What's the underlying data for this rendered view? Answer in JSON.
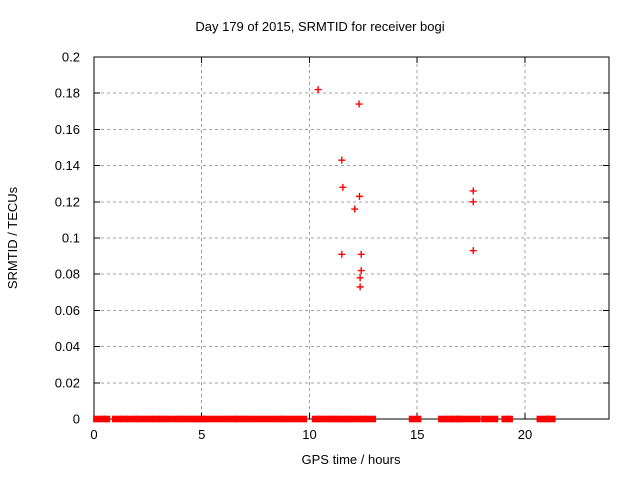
{
  "page": {
    "background": "#ffffff"
  },
  "chart_data": {
    "type": "scatter",
    "title": "Day 179 of 2015, SRMTID for receiver bogi",
    "xlabel": "GPS time / hours",
    "ylabel": "SRMTID / TECUs",
    "xlim": [
      0,
      23.9
    ],
    "ylim": [
      0,
      0.2
    ],
    "grid": true,
    "legend_position": "none",
    "marker": "plus",
    "marker_color": "#ff0000",
    "grid_color": "#a0a0a0",
    "axis_color": "#000000",
    "x_ticks": [
      {
        "v": 0,
        "label": "0"
      },
      {
        "v": 5,
        "label": "5"
      },
      {
        "v": 10,
        "label": "10"
      },
      {
        "v": 15,
        "label": "15"
      },
      {
        "v": 20,
        "label": "20"
      }
    ],
    "y_ticks": [
      {
        "v": 0,
        "label": "0"
      },
      {
        "v": 0.02,
        "label": "0.02"
      },
      {
        "v": 0.04,
        "label": "0.04"
      },
      {
        "v": 0.06,
        "label": "0.06"
      },
      {
        "v": 0.08,
        "label": "0.08"
      },
      {
        "v": 0.1,
        "label": "0.1"
      },
      {
        "v": 0.12,
        "label": "0.12"
      },
      {
        "v": 0.14,
        "label": "0.14"
      },
      {
        "v": 0.16,
        "label": "0.16"
      },
      {
        "v": 0.18,
        "label": "0.18"
      },
      {
        "v": 0.2,
        "label": "0.2"
      }
    ],
    "points": [
      [
        10.4,
        0.182
      ],
      [
        11.5,
        0.143
      ],
      [
        11.55,
        0.128
      ],
      [
        11.5,
        0.091
      ],
      [
        12.1,
        0.116
      ],
      [
        12.3,
        0.174
      ],
      [
        12.32,
        0.123
      ],
      [
        12.4,
        0.091
      ],
      [
        12.4,
        0.082
      ],
      [
        12.35,
        0.078
      ],
      [
        12.35,
        0.073
      ],
      [
        17.6,
        0.126
      ],
      [
        17.6,
        0.12
      ],
      [
        17.6,
        0.093
      ]
    ],
    "baseline_y": 0,
    "baseline_segments": [
      [
        0.05,
        0.45
      ],
      [
        0.52,
        0.66
      ],
      [
        0.93,
        1.2
      ],
      [
        1.3,
        1.46
      ],
      [
        1.58,
        1.95
      ],
      [
        2.0,
        2.43
      ],
      [
        2.55,
        2.7
      ],
      [
        2.8,
        2.95
      ],
      [
        3.04,
        3.13
      ],
      [
        3.24,
        3.33
      ],
      [
        3.47,
        3.56
      ],
      [
        3.74,
        3.83
      ],
      [
        3.96,
        4.04
      ],
      [
        4.16,
        4.38
      ],
      [
        4.5,
        4.65
      ],
      [
        4.74,
        5.07
      ],
      [
        5.16,
        6.54
      ],
      [
        6.6,
        7.0
      ],
      [
        7.12,
        8.12
      ],
      [
        8.28,
        8.68
      ],
      [
        8.77,
        9.06
      ],
      [
        9.2,
        9.57
      ],
      [
        9.71,
        9.8
      ],
      [
        10.2,
        10.38
      ],
      [
        10.49,
        10.84
      ],
      [
        10.93,
        11.03
      ],
      [
        11.1,
        11.2
      ],
      [
        11.3,
        11.8
      ],
      [
        11.88,
        12.31
      ],
      [
        12.42,
        12.54
      ],
      [
        12.68,
        13.0
      ],
      [
        14.7,
        15.1
      ],
      [
        16.06,
        16.34
      ],
      [
        16.45,
        16.57
      ],
      [
        16.67,
        16.77
      ],
      [
        16.9,
        16.94
      ],
      [
        17.0,
        17.85
      ],
      [
        18.06,
        18.27
      ],
      [
        18.45,
        18.67
      ],
      [
        19.0,
        19.17
      ],
      [
        19.25,
        19.35
      ],
      [
        20.63,
        21.03
      ],
      [
        21.08,
        21.33
      ]
    ]
  }
}
